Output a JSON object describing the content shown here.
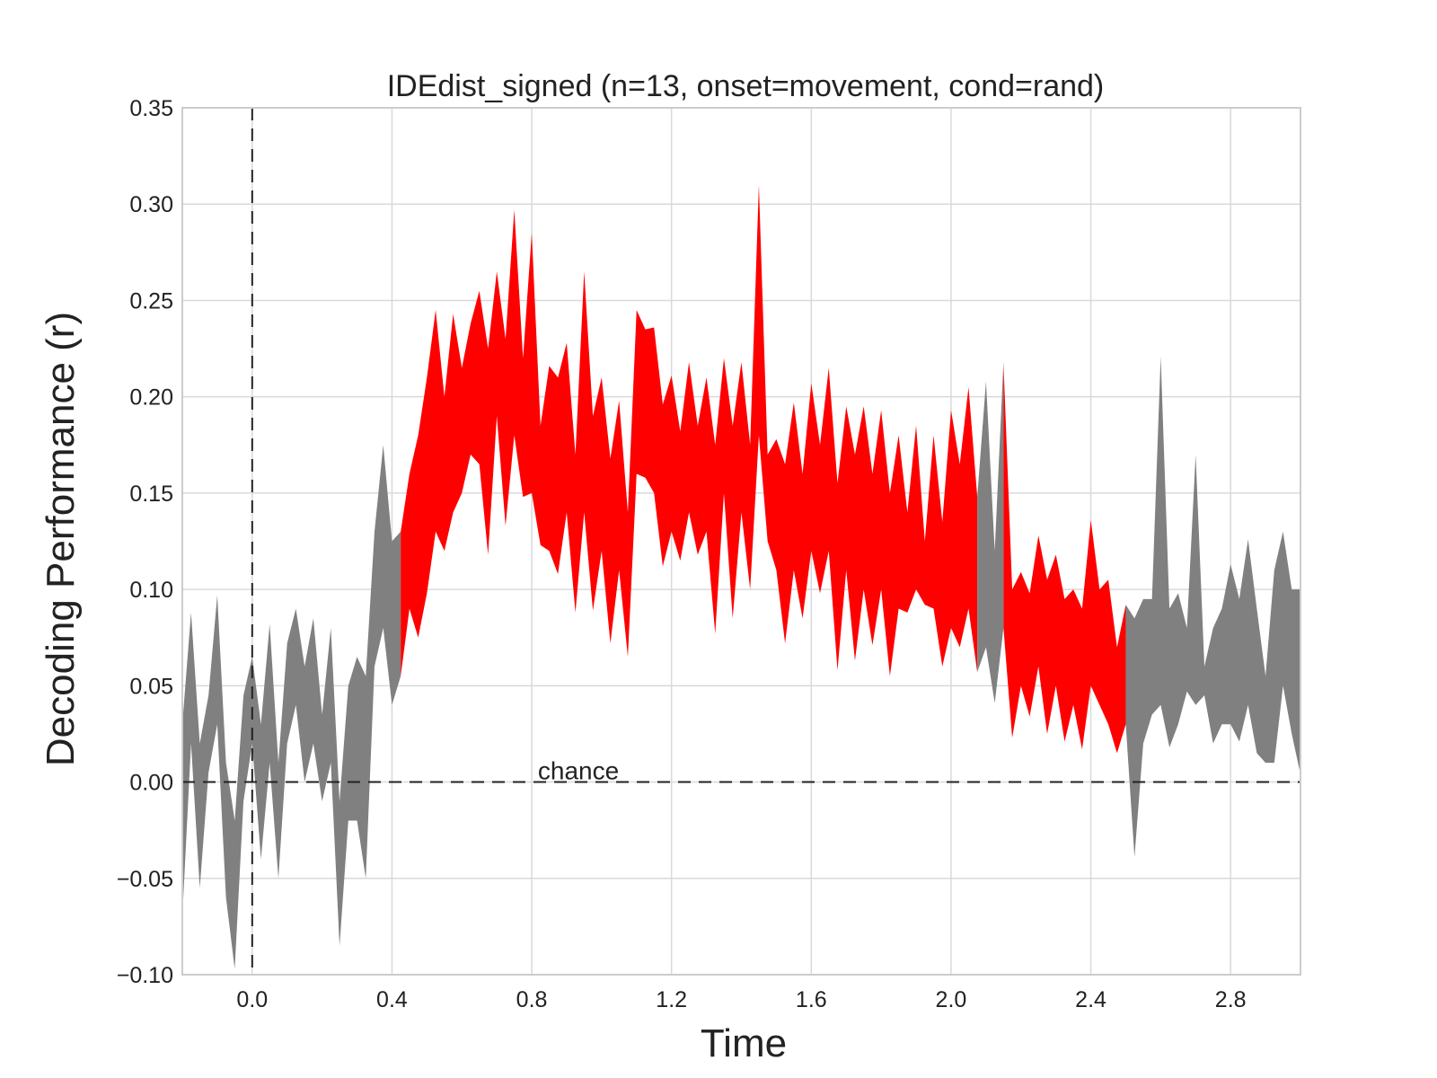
{
  "chart_data": {
    "type": "area",
    "title": "IDEdist_signed (n=13, onset=movement, cond=rand)",
    "xlabel": "Time",
    "ylabel": "Decoding Performance (r)",
    "xlim": [
      -0.2,
      3.0
    ],
    "ylim": [
      -0.1,
      0.35
    ],
    "xticks": [
      0.0,
      0.4,
      0.8,
      1.2,
      1.6,
      2.0,
      2.4,
      2.8
    ],
    "xtick_labels": [
      "0.0",
      "0.4",
      "0.8",
      "1.2",
      "1.6",
      "2.0",
      "2.4",
      "2.8"
    ],
    "yticks": [
      -0.1,
      -0.05,
      0.0,
      0.05,
      0.1,
      0.15,
      0.2,
      0.25,
      0.3,
      0.35
    ],
    "ytick_labels": [
      "−0.10",
      "−0.05",
      "0.00",
      "0.05",
      "0.10",
      "0.15",
      "0.20",
      "0.25",
      "0.30",
      "0.35"
    ],
    "grid": true,
    "vline": {
      "x": 0.0,
      "style": "dashed",
      "color": "#222222"
    },
    "hline": {
      "y": 0.0,
      "style": "dashed",
      "color": "#222222",
      "label": "chance"
    },
    "annotations": [
      {
        "text": "chance",
        "x": 0.8,
        "y": 0.0
      }
    ],
    "colors": {
      "non_significant": "#808080",
      "significant": "#ff0000"
    },
    "significant_intervals": [
      [
        0.425,
        2.05
      ],
      [
        2.15,
        2.475
      ]
    ],
    "x": [
      -0.2,
      -0.175,
      -0.15,
      -0.125,
      -0.1,
      -0.075,
      -0.05,
      -0.025,
      0.0,
      0.025,
      0.05,
      0.075,
      0.1,
      0.125,
      0.15,
      0.175,
      0.2,
      0.225,
      0.25,
      0.275,
      0.3,
      0.325,
      0.35,
      0.375,
      0.4,
      0.425,
      0.45,
      0.475,
      0.5,
      0.525,
      0.55,
      0.575,
      0.6,
      0.625,
      0.65,
      0.675,
      0.7,
      0.725,
      0.75,
      0.775,
      0.8,
      0.825,
      0.85,
      0.875,
      0.9,
      0.925,
      0.95,
      0.975,
      1.0,
      1.025,
      1.05,
      1.075,
      1.1,
      1.125,
      1.15,
      1.175,
      1.2,
      1.225,
      1.25,
      1.275,
      1.3,
      1.325,
      1.35,
      1.375,
      1.4,
      1.425,
      1.45,
      1.475,
      1.5,
      1.525,
      1.55,
      1.575,
      1.6,
      1.625,
      1.65,
      1.675,
      1.7,
      1.725,
      1.75,
      1.775,
      1.8,
      1.825,
      1.85,
      1.875,
      1.9,
      1.925,
      1.95,
      1.975,
      2.0,
      2.025,
      2.05,
      2.075,
      2.1,
      2.125,
      2.15,
      2.175,
      2.2,
      2.225,
      2.25,
      2.275,
      2.3,
      2.325,
      2.35,
      2.375,
      2.4,
      2.425,
      2.45,
      2.475,
      2.5,
      2.525,
      2.55,
      2.575,
      2.6,
      2.625,
      2.65,
      2.675,
      2.7,
      2.725,
      2.75,
      2.775,
      2.8,
      2.825,
      2.85,
      2.875,
      2.9,
      2.925,
      2.95,
      2.975,
      3.0
    ],
    "series": [
      {
        "values": [
          -0.07,
          0.088,
          -0.055,
          0.005,
          0.097,
          -0.06,
          -0.097,
          0.045,
          0.065,
          -0.04,
          0.082,
          -0.05,
          0.072,
          0.09,
          0.06,
          0.085,
          -0.01,
          0.08,
          -0.085,
          0.05,
          0.065,
          -0.05,
          0.13,
          0.175,
          0.04,
          0.055,
          0.09,
          0.075,
          0.098,
          0.245,
          0.12,
          0.243,
          0.15,
          0.238,
          0.255,
          0.118,
          0.265,
          0.133,
          0.297,
          0.148,
          0.285,
          0.123,
          0.216,
          0.108,
          0.228,
          0.088,
          0.265,
          0.089,
          0.21,
          0.072,
          0.198,
          0.065,
          0.245,
          0.158,
          0.236,
          0.112,
          0.211,
          0.115,
          0.218,
          0.118,
          0.21,
          0.077,
          0.22,
          0.085,
          0.218,
          0.1,
          0.31,
          0.125,
          0.178,
          0.072,
          0.197,
          0.085,
          0.207,
          0.098,
          0.215,
          0.058,
          0.195,
          0.063,
          0.195,
          0.071,
          0.193,
          0.055,
          0.18,
          0.088,
          0.185,
          0.092,
          0.18,
          0.06,
          0.193,
          0.07,
          0.205,
          0.057,
          0.208,
          0.041,
          0.218,
          0.023,
          0.109,
          0.034,
          0.128,
          0.025,
          0.118,
          0.021,
          0.1,
          0.017,
          0.136,
          0.04,
          0.105,
          0.015,
          0.092,
          -0.039,
          0.095,
          0.035,
          0.221,
          0.018,
          0.098,
          0.047,
          0.17,
          0.045,
          0.08,
          0.03,
          0.113,
          0.021,
          0.126,
          0.015,
          0.055,
          0.01,
          0.13,
          0.025,
          0.004
        ],
        "role": "upper_and_lower_zigzag"
      }
    ],
    "band": {
      "upper": [
        0.03,
        0.088,
        0.02,
        0.045,
        0.097,
        0.01,
        -0.02,
        0.045,
        0.065,
        0.03,
        0.082,
        0.01,
        0.072,
        0.09,
        0.06,
        0.085,
        0.035,
        0.08,
        -0.01,
        0.05,
        0.065,
        0.055,
        0.13,
        0.175,
        0.125,
        0.13,
        0.16,
        0.18,
        0.21,
        0.245,
        0.2,
        0.243,
        0.215,
        0.238,
        0.255,
        0.225,
        0.265,
        0.23,
        0.297,
        0.22,
        0.285,
        0.185,
        0.216,
        0.21,
        0.228,
        0.17,
        0.265,
        0.19,
        0.21,
        0.168,
        0.198,
        0.14,
        0.245,
        0.235,
        0.236,
        0.196,
        0.211,
        0.182,
        0.218,
        0.185,
        0.21,
        0.175,
        0.22,
        0.185,
        0.218,
        0.175,
        0.31,
        0.17,
        0.178,
        0.165,
        0.197,
        0.16,
        0.207,
        0.175,
        0.215,
        0.155,
        0.195,
        0.17,
        0.195,
        0.16,
        0.193,
        0.15,
        0.18,
        0.14,
        0.185,
        0.125,
        0.18,
        0.135,
        0.193,
        0.165,
        0.205,
        0.148,
        0.208,
        0.12,
        0.218,
        0.1,
        0.109,
        0.098,
        0.128,
        0.105,
        0.118,
        0.095,
        0.1,
        0.09,
        0.136,
        0.1,
        0.105,
        0.07,
        0.092,
        0.085,
        0.095,
        0.095,
        0.221,
        0.09,
        0.098,
        0.08,
        0.17,
        0.06,
        0.08,
        0.09,
        0.113,
        0.095,
        0.126,
        0.09,
        0.055,
        0.11,
        0.13,
        0.1,
        0.1
      ],
      "lower": [
        -0.07,
        0.02,
        -0.055,
        0.005,
        0.03,
        -0.06,
        -0.097,
        -0.01,
        0.02,
        -0.04,
        0.01,
        -0.05,
        0.02,
        0.04,
        0.0,
        0.02,
        -0.01,
        0.01,
        -0.085,
        -0.02,
        -0.02,
        -0.05,
        0.06,
        0.08,
        0.04,
        0.055,
        0.09,
        0.075,
        0.098,
        0.13,
        0.12,
        0.14,
        0.15,
        0.17,
        0.165,
        0.118,
        0.19,
        0.133,
        0.18,
        0.148,
        0.15,
        0.123,
        0.12,
        0.108,
        0.14,
        0.088,
        0.14,
        0.089,
        0.12,
        0.072,
        0.11,
        0.065,
        0.16,
        0.158,
        0.15,
        0.112,
        0.13,
        0.115,
        0.14,
        0.118,
        0.13,
        0.077,
        0.15,
        0.085,
        0.14,
        0.1,
        0.18,
        0.125,
        0.11,
        0.072,
        0.11,
        0.085,
        0.12,
        0.098,
        0.12,
        0.058,
        0.11,
        0.063,
        0.1,
        0.071,
        0.1,
        0.055,
        0.09,
        0.088,
        0.1,
        0.092,
        0.09,
        0.06,
        0.08,
        0.07,
        0.09,
        0.057,
        0.07,
        0.041,
        0.08,
        0.023,
        0.05,
        0.034,
        0.06,
        0.025,
        0.05,
        0.021,
        0.04,
        0.017,
        0.05,
        0.04,
        0.03,
        0.015,
        0.03,
        -0.039,
        0.02,
        0.035,
        0.04,
        0.018,
        0.03,
        0.047,
        0.04,
        0.045,
        0.02,
        0.03,
        0.03,
        0.021,
        0.04,
        0.015,
        0.01,
        0.01,
        0.05,
        0.025,
        0.004
      ]
    }
  }
}
